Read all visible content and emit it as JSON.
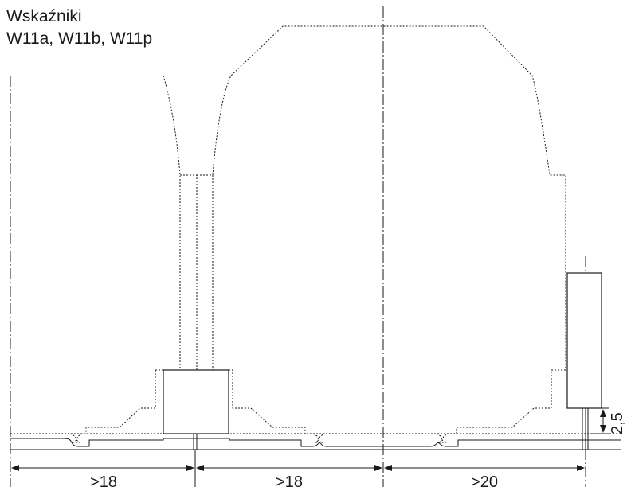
{
  "title": {
    "line1": "Wskaźniki",
    "line2": "W11a, W11b, W11p"
  },
  "dimensions": {
    "spacing_left": ">18",
    "spacing_middle": ">18",
    "spacing_right": ">20",
    "signal_height": "2,5"
  },
  "colors": {
    "line": "#1a1a1a"
  }
}
